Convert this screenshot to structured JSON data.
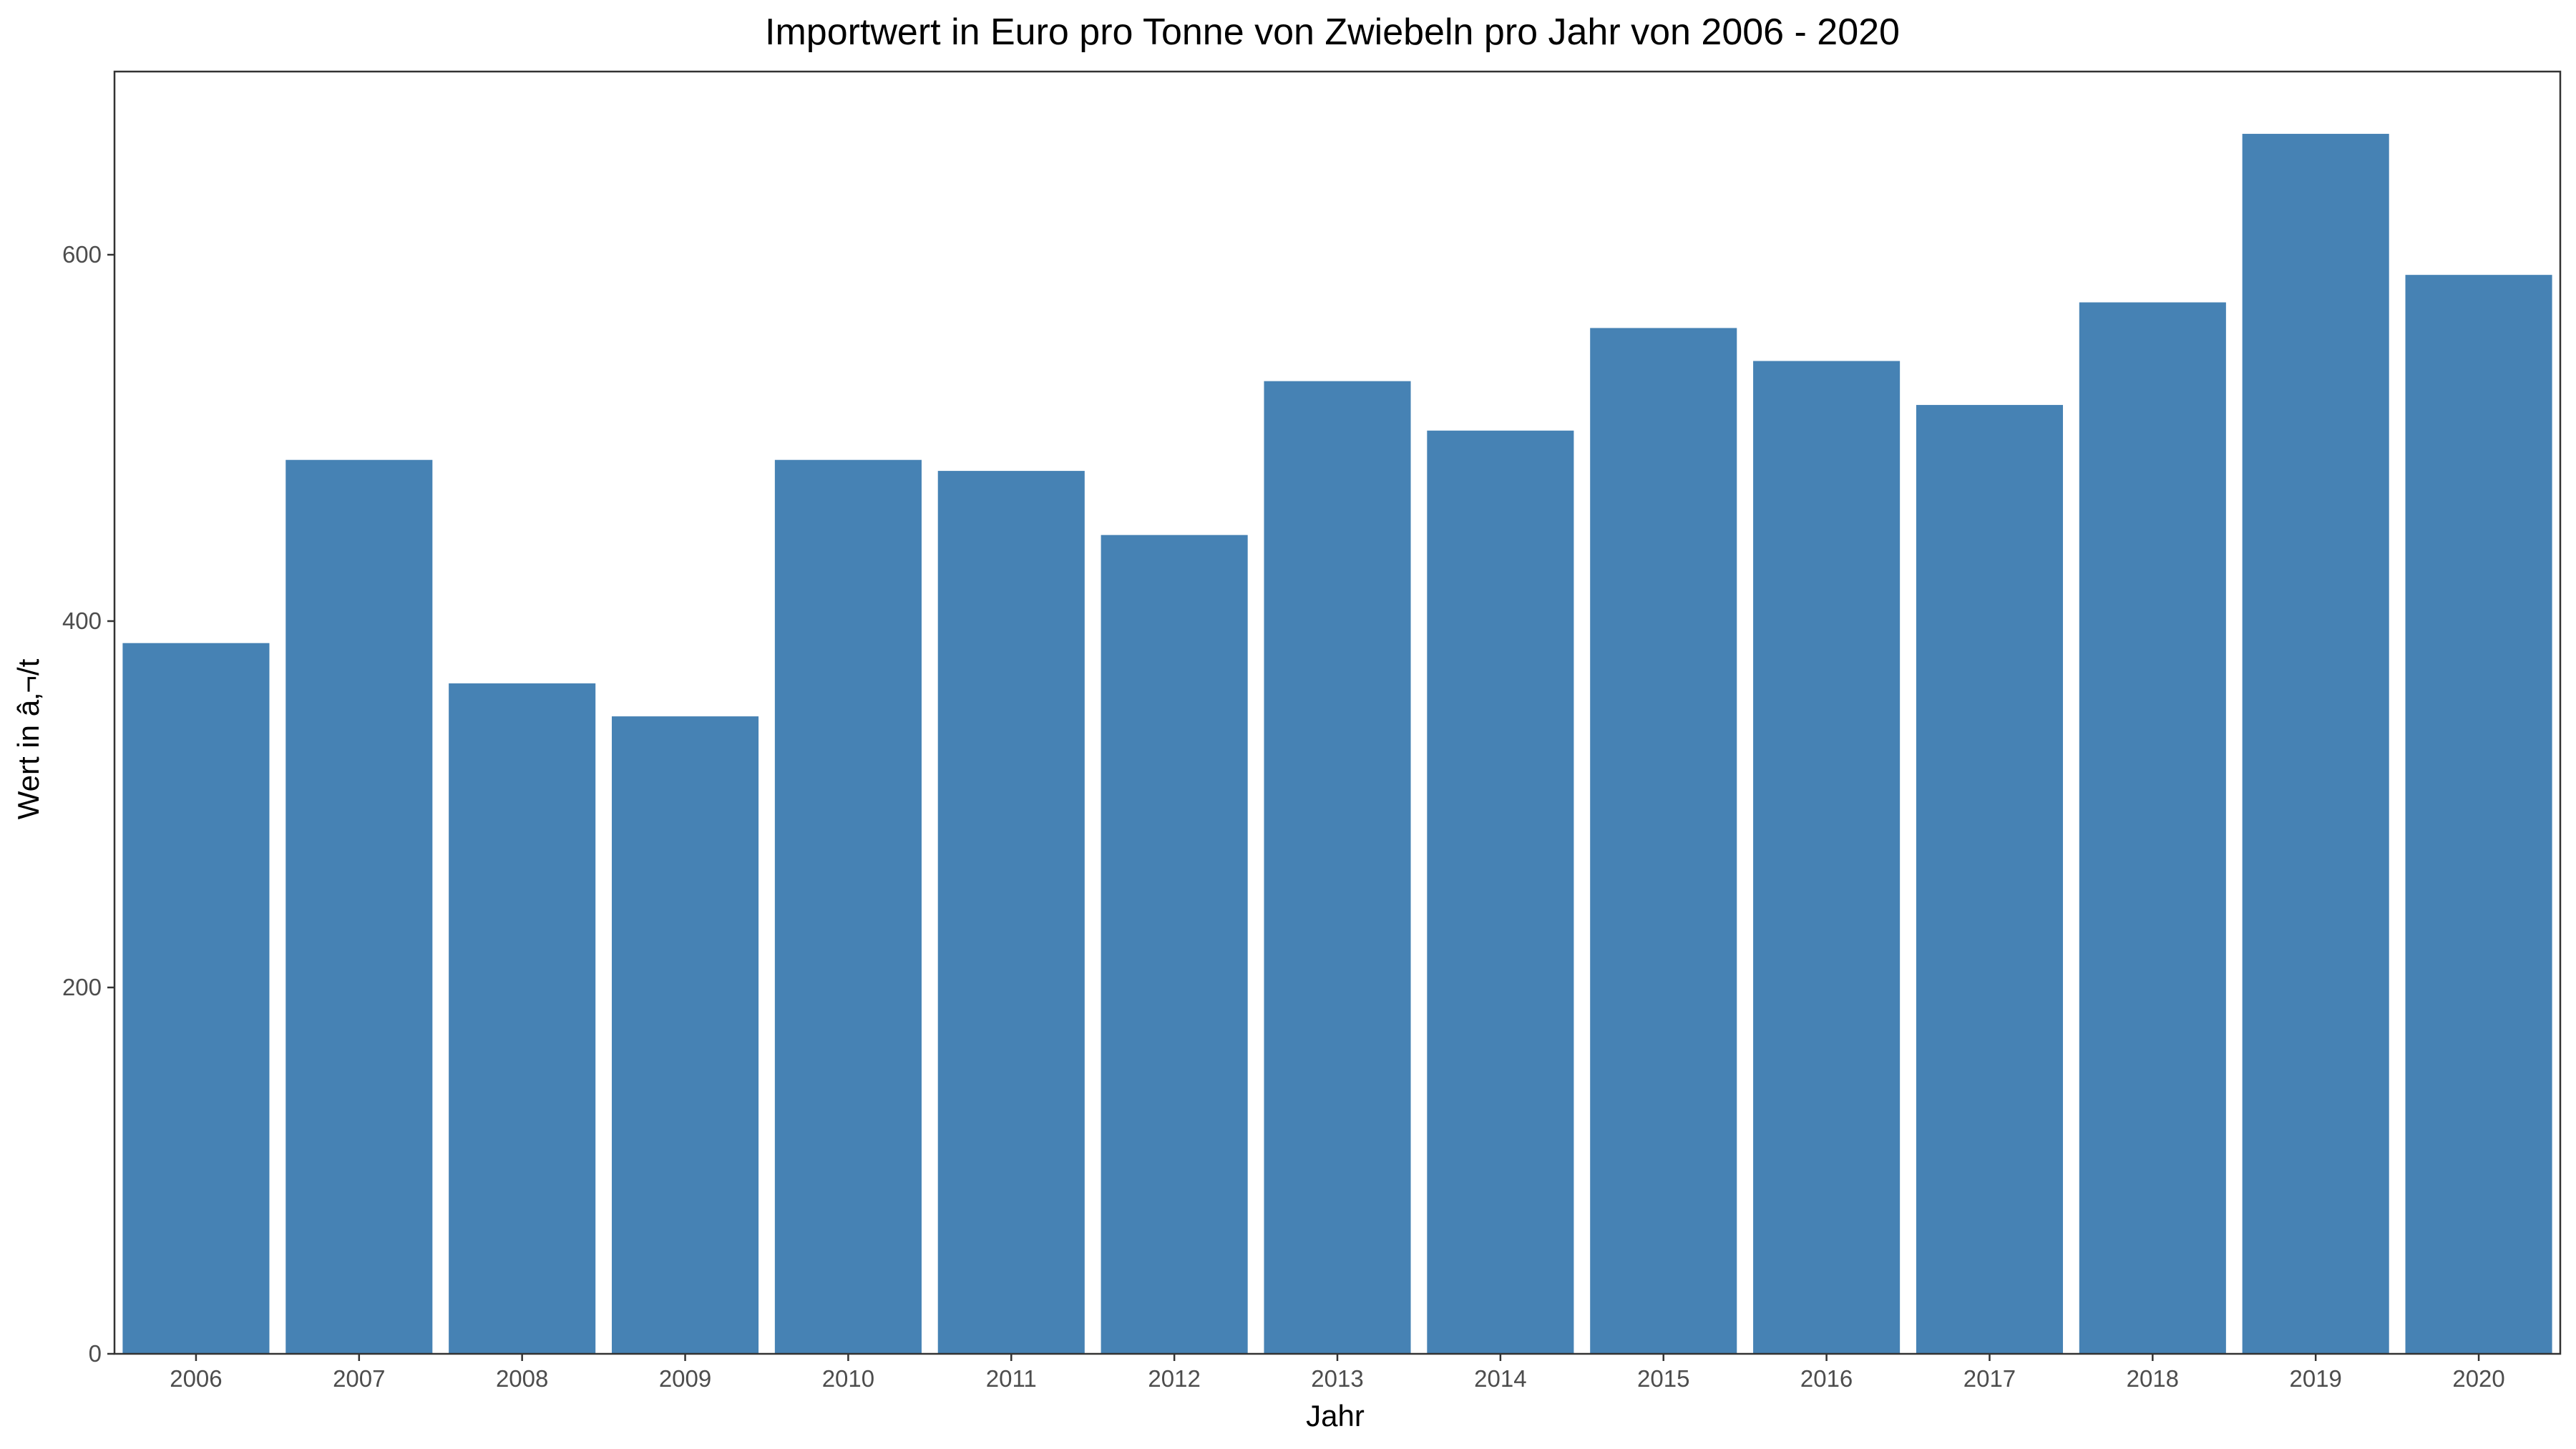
{
  "chart_data": {
    "type": "bar",
    "title": "Importwert in Euro pro Tonne von Zwiebeln pro Jahr von 2006 - 2020",
    "xlabel": "Jahr",
    "ylabel": "Wert in â‚¬/t",
    "categories": [
      "2006",
      "2007",
      "2008",
      "2009",
      "2010",
      "2011",
      "2012",
      "2013",
      "2014",
      "2015",
      "2016",
      "2017",
      "2018",
      "2019",
      "2020"
    ],
    "values": [
      388,
      488,
      366,
      348,
      488,
      482,
      447,
      531,
      504,
      560,
      542,
      518,
      574,
      666,
      589
    ],
    "ylim": [
      0,
      700
    ],
    "yticks": [
      0,
      200,
      400,
      600
    ],
    "bar_color": "#4682B4",
    "grid": false,
    "legend": "none"
  }
}
